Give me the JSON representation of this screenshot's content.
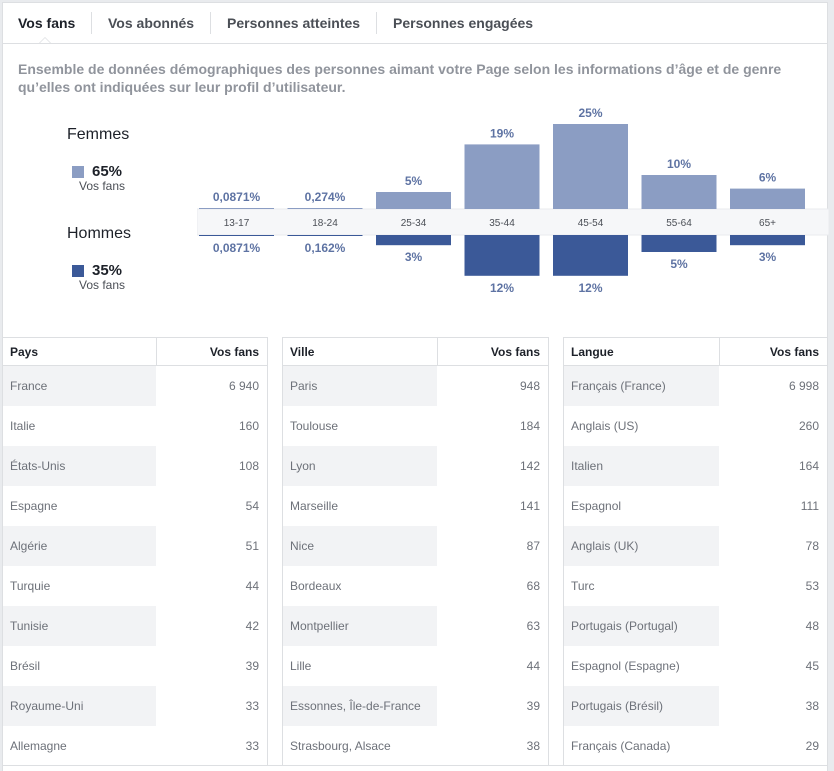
{
  "tabs": [
    {
      "label": "Vos fans",
      "active": true
    },
    {
      "label": "Vos abonnés",
      "active": false
    },
    {
      "label": "Personnes atteintes",
      "active": false
    },
    {
      "label": "Personnes engagées",
      "active": false
    }
  ],
  "description": "Ensemble de données démographiques des personnes aimant votre Page selon les informations d’âge et de genre qu’elles ont indiquées sur leur profil d’utilisateur.",
  "gender": {
    "women": {
      "title": "Femmes",
      "pct": "65%",
      "sub": "Vos fans",
      "color": "#8b9dc3"
    },
    "men": {
      "title": "Hommes",
      "pct": "35%",
      "sub": "Vos fans",
      "color": "#3b5998"
    }
  },
  "chart_data": {
    "type": "bar",
    "categories": [
      "13-17",
      "18-24",
      "25-34",
      "35-44",
      "45-54",
      "55-64",
      "65+"
    ],
    "series": [
      {
        "name": "Femmes",
        "values": [
          0.0871,
          0.274,
          5,
          19,
          25,
          10,
          6
        ],
        "labels": [
          "0,0871%",
          "0,274%",
          "5%",
          "19%",
          "25%",
          "10%",
          "6%"
        ],
        "color": "#8b9dc3"
      },
      {
        "name": "Hommes",
        "values": [
          0.0871,
          0.162,
          3,
          12,
          12,
          5,
          3
        ],
        "labels": [
          "0,0871%",
          "0,162%",
          "3%",
          "12%",
          "12%",
          "5%",
          "3%"
        ],
        "color": "#3b5998"
      }
    ],
    "label_color": "#5e73a3"
  },
  "tables": {
    "countries": {
      "col1": "Pays",
      "col2": "Vos fans",
      "rows": [
        [
          "France",
          "6 940"
        ],
        [
          "Italie",
          "160"
        ],
        [
          "États-Unis",
          "108"
        ],
        [
          "Espagne",
          "54"
        ],
        [
          "Algérie",
          "51"
        ],
        [
          "Turquie",
          "44"
        ],
        [
          "Tunisie",
          "42"
        ],
        [
          "Brésil",
          "39"
        ],
        [
          "Royaume-Uni",
          "33"
        ],
        [
          "Allemagne",
          "33"
        ]
      ]
    },
    "cities": {
      "col1": "Ville",
      "col2": "Vos fans",
      "rows": [
        [
          "Paris",
          "948"
        ],
        [
          "Toulouse",
          "184"
        ],
        [
          "Lyon",
          "142"
        ],
        [
          "Marseille",
          "141"
        ],
        [
          "Nice",
          "87"
        ],
        [
          "Bordeaux",
          "68"
        ],
        [
          "Montpellier",
          "63"
        ],
        [
          "Lille",
          "44"
        ],
        [
          "Essonnes, Île-de-France",
          "39"
        ],
        [
          "Strasbourg, Alsace",
          "38"
        ]
      ]
    },
    "languages": {
      "col1": "Langue",
      "col2": "Vos fans",
      "rows": [
        [
          "Français (France)",
          "6 998"
        ],
        [
          "Anglais (US)",
          "260"
        ],
        [
          "Italien",
          "164"
        ],
        [
          "Espagnol",
          "111"
        ],
        [
          "Anglais (UK)",
          "78"
        ],
        [
          "Turc",
          "53"
        ],
        [
          "Portugais (Portugal)",
          "48"
        ],
        [
          "Espagnol (Espagne)",
          "45"
        ],
        [
          "Portugais (Brésil)",
          "38"
        ],
        [
          "Français (Canada)",
          "29"
        ]
      ]
    }
  }
}
